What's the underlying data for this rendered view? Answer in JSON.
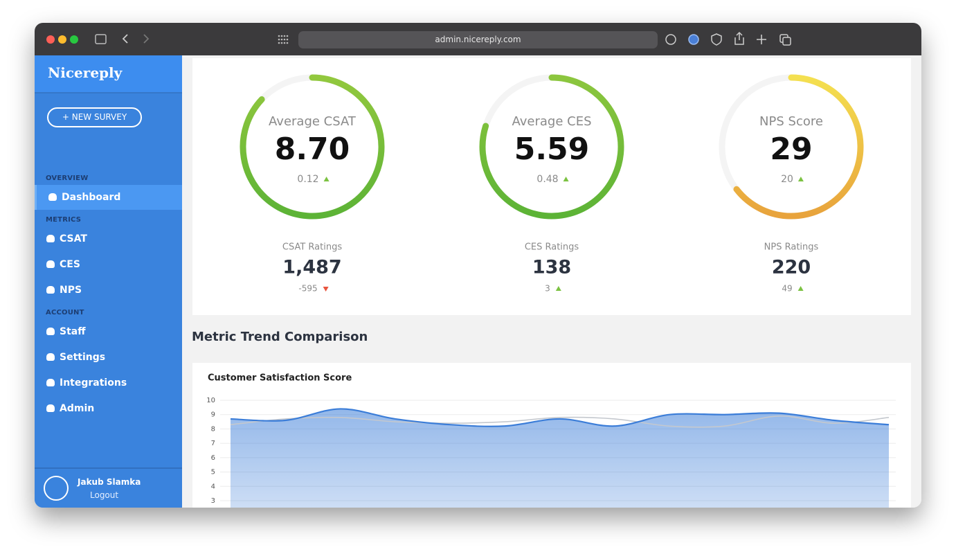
{
  "browser": {
    "url": "admin.nicereply.com"
  },
  "sidebar": {
    "logo": "Nicereply",
    "button": "+ NEW SURVEY",
    "sections": [
      {
        "title": "OVERVIEW",
        "items": [
          "Dashboard"
        ]
      },
      {
        "title": "METRICS",
        "items": [
          "CSAT",
          "CES",
          "NPS"
        ]
      },
      {
        "title": "ACCOUNT",
        "items": [
          "Staff",
          "Settings",
          "Integrations",
          "Admin"
        ]
      }
    ]
  },
  "user": {
    "name": "Jakub Slamka",
    "action": "Logout"
  },
  "gauges": [
    {
      "label": "Average CSAT",
      "value": 8.7,
      "value_label": "8.70",
      "scale": [
        0,
        10
      ],
      "colors": [
        "#92c83e",
        "#5cb336"
      ],
      "change": 0.12,
      "trend": "up"
    },
    {
      "label": "Average CES",
      "value": 5.59,
      "scale": [
        0,
        7
      ],
      "colors": [
        "#8cc63e",
        "#5cb336"
      ],
      "change": 0.48,
      "trend": "up"
    },
    {
      "label": "NPS Score",
      "value": 29,
      "scale": [
        -100,
        100
      ],
      "colors": [
        "#f4e050",
        "#e8a33c"
      ],
      "change": 20,
      "trend": "up"
    }
  ],
  "ratings": [
    {
      "label": "CSAT Ratings",
      "value": "1,487",
      "change": -595,
      "trend": "down"
    },
    {
      "label": "CES Ratings",
      "value": "138",
      "change": 3,
      "trend": "up"
    },
    {
      "label": "NPS Ratings",
      "value": "220",
      "change": 49,
      "trend": "up"
    }
  ],
  "section_title": "Metric Trend Comparison",
  "chart_data": {
    "type": "line",
    "title": "Customer Satisfaction Score",
    "categories": [
      null,
      null,
      null,
      null,
      null,
      null,
      null,
      null,
      null,
      null,
      null,
      null,
      null
    ],
    "series": [
      {
        "color": "#c4c8ce",
        "values": [
          8.3,
          8.7,
          8.8,
          8.5,
          8.4,
          8.5,
          8.8,
          8.7,
          8.2,
          8.2,
          8.9,
          8.4,
          8.8
        ]
      },
      {
        "color": "#3b7dd8",
        "values": [
          8.7,
          8.6,
          9.4,
          8.7,
          8.3,
          8.2,
          8.7,
          8.2,
          9.0,
          9.0,
          9.1,
          8.6,
          8.3
        ],
        "fill": true
      }
    ],
    "ylim": [
      3,
      10
    ],
    "yticks": [
      3,
      4,
      5,
      6,
      7,
      8,
      9,
      10
    ],
    "grid": true
  }
}
